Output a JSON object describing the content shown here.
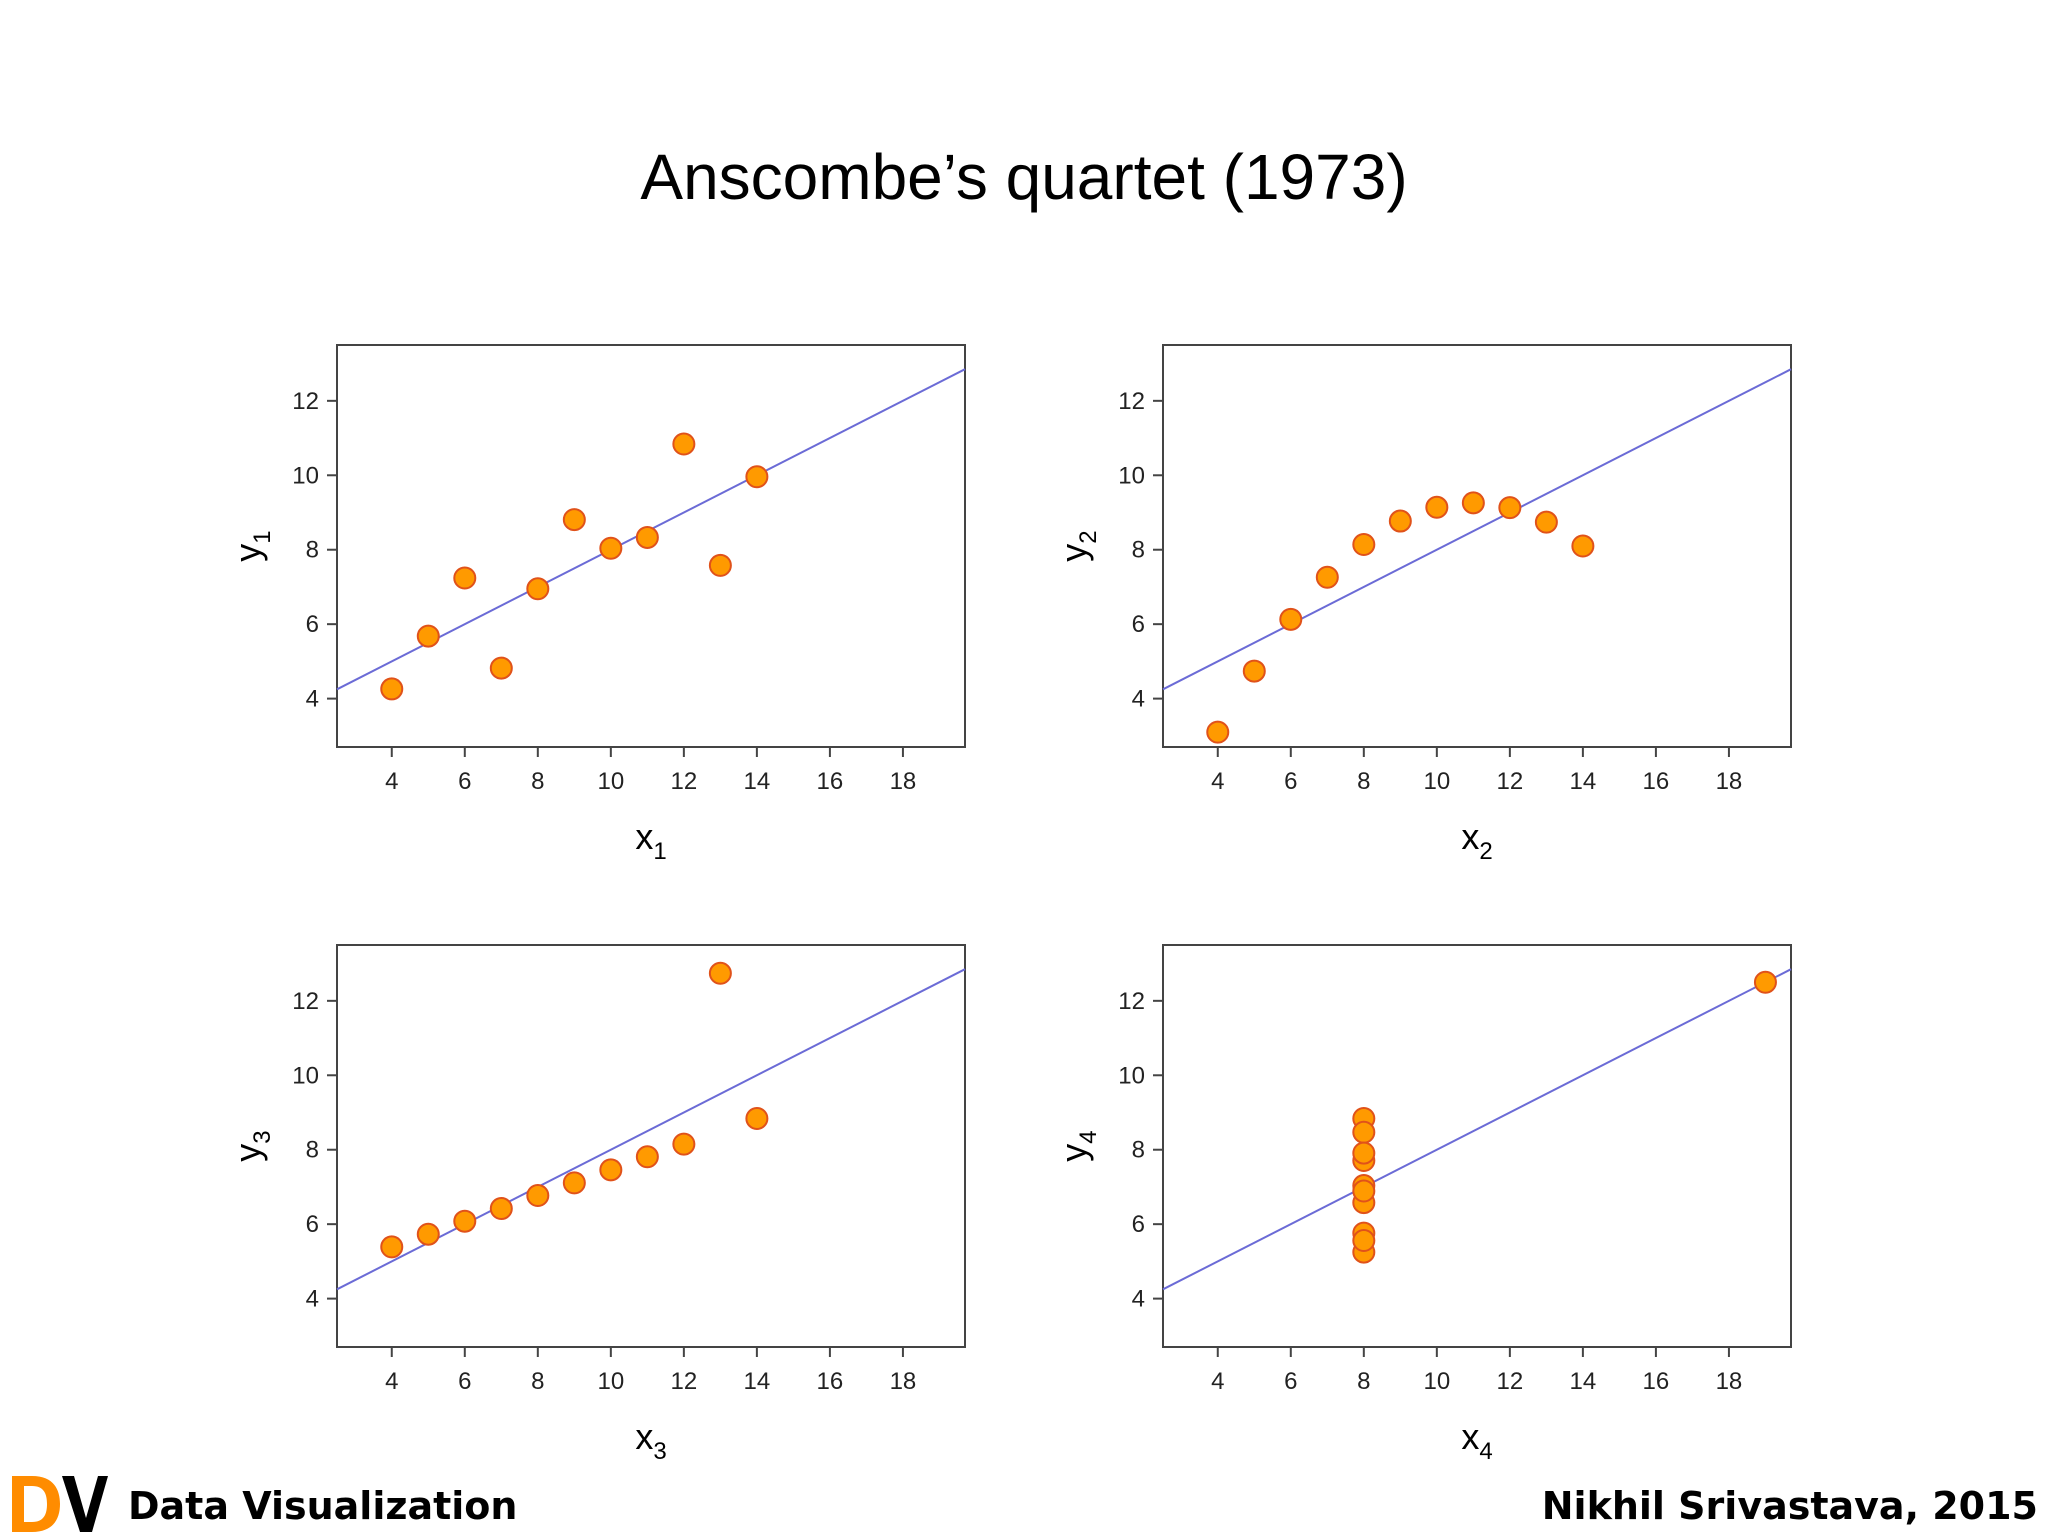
{
  "slide": {
    "title": "Anscombe’s quartet (1973)",
    "footer_left": "Data Visualization",
    "footer_right": "Nikhil Srivastava, 2015",
    "logo_text": "DV"
  },
  "colors": {
    "point_fill": "#ff9a00",
    "point_stroke": "#e0521a",
    "fit_line": "#6b6bd6",
    "axis": "#444444",
    "logo_d": "#ff8c00",
    "logo_v": "#000000"
  },
  "chart_data": [
    {
      "type": "scatter",
      "xlabel": "x",
      "xlabel_sub": "1",
      "ylabel": "y",
      "ylabel_sub": "1",
      "xlim": [
        2.5,
        19.7
      ],
      "ylim": [
        2.7,
        13.5
      ],
      "xticks": [
        4,
        6,
        8,
        10,
        12,
        14,
        16,
        18
      ],
      "yticks": [
        4,
        6,
        8,
        10,
        12
      ],
      "grid": false,
      "fit_line": {
        "intercept": 3.0,
        "slope": 0.5
      },
      "points": [
        [
          10,
          8.04
        ],
        [
          8,
          6.95
        ],
        [
          13,
          7.58
        ],
        [
          9,
          8.81
        ],
        [
          11,
          8.33
        ],
        [
          14,
          9.96
        ],
        [
          6,
          7.24
        ],
        [
          4,
          4.26
        ],
        [
          12,
          10.84
        ],
        [
          7,
          4.82
        ],
        [
          5,
          5.68
        ]
      ]
    },
    {
      "type": "scatter",
      "xlabel": "x",
      "xlabel_sub": "2",
      "ylabel": "y",
      "ylabel_sub": "2",
      "xlim": [
        2.5,
        19.7
      ],
      "ylim": [
        2.7,
        13.5
      ],
      "xticks": [
        4,
        6,
        8,
        10,
        12,
        14,
        16,
        18
      ],
      "yticks": [
        4,
        6,
        8,
        10,
        12
      ],
      "grid": false,
      "fit_line": {
        "intercept": 3.0,
        "slope": 0.5
      },
      "points": [
        [
          10,
          9.14
        ],
        [
          8,
          8.14
        ],
        [
          13,
          8.74
        ],
        [
          9,
          8.77
        ],
        [
          11,
          9.26
        ],
        [
          14,
          8.1
        ],
        [
          6,
          6.13
        ],
        [
          4,
          3.1
        ],
        [
          12,
          9.13
        ],
        [
          7,
          7.26
        ],
        [
          5,
          4.74
        ]
      ]
    },
    {
      "type": "scatter",
      "xlabel": "x",
      "xlabel_sub": "3",
      "ylabel": "y",
      "ylabel_sub": "3",
      "xlim": [
        2.5,
        19.7
      ],
      "ylim": [
        2.7,
        13.5
      ],
      "xticks": [
        4,
        6,
        8,
        10,
        12,
        14,
        16,
        18
      ],
      "yticks": [
        4,
        6,
        8,
        10,
        12
      ],
      "grid": false,
      "fit_line": {
        "intercept": 3.0,
        "slope": 0.5
      },
      "points": [
        [
          10,
          7.46
        ],
        [
          8,
          6.77
        ],
        [
          13,
          12.74
        ],
        [
          9,
          7.11
        ],
        [
          11,
          7.81
        ],
        [
          14,
          8.84
        ],
        [
          6,
          6.08
        ],
        [
          4,
          5.39
        ],
        [
          12,
          8.15
        ],
        [
          7,
          6.42
        ],
        [
          5,
          5.73
        ]
      ]
    },
    {
      "type": "scatter",
      "xlabel": "x",
      "xlabel_sub": "4",
      "ylabel": "y",
      "ylabel_sub": "4",
      "xlim": [
        2.5,
        19.7
      ],
      "ylim": [
        2.7,
        13.5
      ],
      "xticks": [
        4,
        6,
        8,
        10,
        12,
        14,
        16,
        18
      ],
      "yticks": [
        4,
        6,
        8,
        10,
        12
      ],
      "grid": false,
      "fit_line": {
        "intercept": 3.0,
        "slope": 0.5
      },
      "points": [
        [
          8,
          6.58
        ],
        [
          8,
          5.76
        ],
        [
          8,
          7.71
        ],
        [
          8,
          8.84
        ],
        [
          8,
          8.47
        ],
        [
          8,
          7.04
        ],
        [
          8,
          5.25
        ],
        [
          19,
          12.5
        ],
        [
          8,
          5.56
        ],
        [
          8,
          7.91
        ],
        [
          8,
          6.89
        ]
      ]
    }
  ]
}
